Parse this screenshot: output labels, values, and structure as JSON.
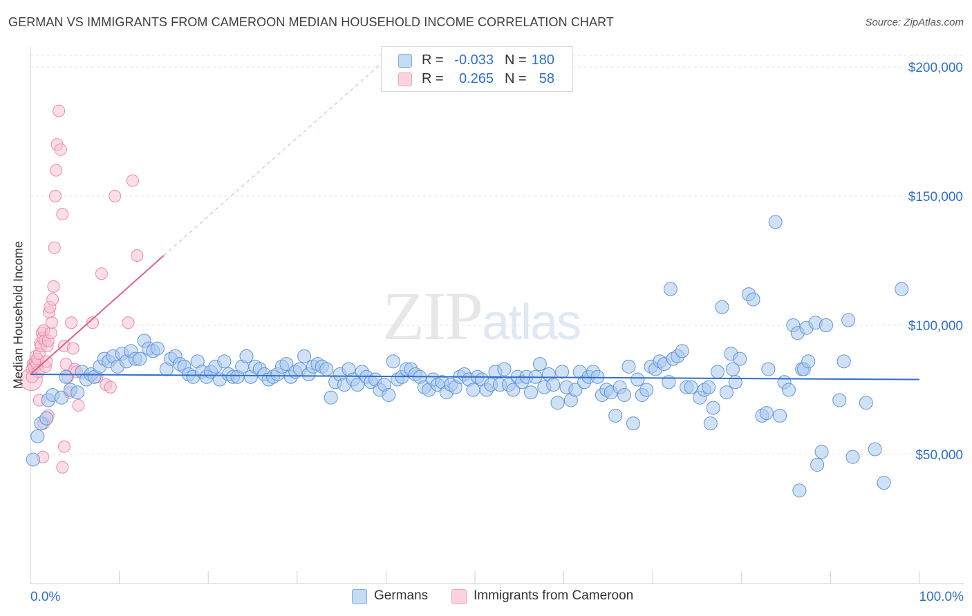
{
  "title": "GERMAN VS IMMIGRANTS FROM CAMEROON MEDIAN HOUSEHOLD INCOME CORRELATION CHART",
  "source": "Source: ZipAtlas.com",
  "watermark": {
    "zip": "ZIP",
    "atlas": "atlas"
  },
  "legend": {
    "rows": [
      {
        "r_label": "R =",
        "r_value": "-0.033",
        "n_label": "N =",
        "n_value": "180",
        "color": "#7aaee6"
      },
      {
        "r_label": "R =",
        "r_value": "0.265",
        "n_label": "N =",
        "n_value": "58",
        "color": "#f2a3bd"
      }
    ]
  },
  "bottom_legend": {
    "items": [
      {
        "label": "Germans",
        "color": "#7aaee6"
      },
      {
        "label": "Immigrants from Cameroon",
        "color": "#f2a3bd"
      }
    ]
  },
  "colors": {
    "blue_fill": "#a9c9ef",
    "blue_stroke": "#5f95d8",
    "blue_line": "#2f6fc9",
    "pink_fill": "#f7c2d3",
    "pink_stroke": "#e88aaa",
    "pink_line": "#e0608a",
    "tick_label": "#2f6fc9",
    "grid": "#e6e6e6"
  },
  "chart_data": {
    "type": "scatter",
    "title": "GERMAN VS IMMIGRANTS FROM CAMEROON MEDIAN HOUSEHOLD INCOME CORRELATION CHART",
    "xlabel": "",
    "ylabel": "Median Household Income",
    "xlim": [
      0,
      100
    ],
    "ylim": [
      0,
      210000
    ],
    "x_tick_labels": [
      "0.0%",
      "100.0%"
    ],
    "y_ticks": [
      50000,
      100000,
      150000,
      200000
    ],
    "y_tick_labels": [
      "$50,000",
      "$100,000",
      "$150,000",
      "$200,000"
    ],
    "grid": "horizontal dashed",
    "legend_position": "top-center",
    "series": [
      {
        "name": "Germans",
        "trend": {
          "x": [
            0,
            100
          ],
          "y": [
            81000,
            79000
          ]
        },
        "points": [
          [
            0.3,
            48000
          ],
          [
            0.8,
            57000
          ],
          [
            1.2,
            62000
          ],
          [
            1.8,
            64000
          ],
          [
            2.0,
            71000
          ],
          [
            2.5,
            73000
          ],
          [
            3.5,
            72000
          ],
          [
            4.0,
            80000
          ],
          [
            4.5,
            75000
          ],
          [
            5.3,
            74000
          ],
          [
            5.8,
            82000
          ],
          [
            6.3,
            79000
          ],
          [
            6.8,
            81000
          ],
          [
            7.2,
            80000
          ],
          [
            7.8,
            84000
          ],
          [
            8.3,
            87000
          ],
          [
            8.8,
            86000
          ],
          [
            9.3,
            88000
          ],
          [
            9.8,
            84000
          ],
          [
            10.3,
            89000
          ],
          [
            10.8,
            86000
          ],
          [
            11.3,
            90000
          ],
          [
            11.8,
            87000
          ],
          [
            12.3,
            87000
          ],
          [
            12.8,
            94000
          ],
          [
            13.3,
            91000
          ],
          [
            13.8,
            90000
          ],
          [
            14.3,
            91000
          ],
          [
            15.3,
            83000
          ],
          [
            15.8,
            87000
          ],
          [
            16.3,
            88000
          ],
          [
            16.8,
            85000
          ],
          [
            17.3,
            84000
          ],
          [
            17.8,
            81000
          ],
          [
            18.3,
            80000
          ],
          [
            18.8,
            86000
          ],
          [
            19.3,
            82000
          ],
          [
            19.8,
            80000
          ],
          [
            20.3,
            82000
          ],
          [
            20.8,
            84000
          ],
          [
            21.3,
            79000
          ],
          [
            21.8,
            86000
          ],
          [
            22.3,
            81000
          ],
          [
            22.8,
            80000
          ],
          [
            23.3,
            80000
          ],
          [
            23.8,
            84000
          ],
          [
            24.3,
            88000
          ],
          [
            24.8,
            80000
          ],
          [
            25.3,
            84000
          ],
          [
            25.8,
            83000
          ],
          [
            26.3,
            81000
          ],
          [
            26.8,
            79000
          ],
          [
            27.3,
            80000
          ],
          [
            27.8,
            81000
          ],
          [
            28.3,
            84000
          ],
          [
            28.8,
            85000
          ],
          [
            29.3,
            80000
          ],
          [
            29.8,
            82000
          ],
          [
            30.3,
            83000
          ],
          [
            30.8,
            88000
          ],
          [
            31.3,
            81000
          ],
          [
            31.8,
            84000
          ],
          [
            32.3,
            85000
          ],
          [
            32.8,
            84000
          ],
          [
            33.3,
            83000
          ],
          [
            33.8,
            72000
          ],
          [
            34.3,
            78000
          ],
          [
            34.8,
            81000
          ],
          [
            35.3,
            77000
          ],
          [
            35.8,
            83000
          ],
          [
            36.3,
            79000
          ],
          [
            36.8,
            77000
          ],
          [
            37.3,
            82000
          ],
          [
            37.8,
            80000
          ],
          [
            38.3,
            78000
          ],
          [
            38.8,
            79000
          ],
          [
            39.3,
            75000
          ],
          [
            39.8,
            77000
          ],
          [
            40.3,
            73000
          ],
          [
            40.8,
            86000
          ],
          [
            41.3,
            79000
          ],
          [
            41.8,
            80000
          ],
          [
            42.3,
            83000
          ],
          [
            42.8,
            83000
          ],
          [
            43.3,
            81000
          ],
          [
            43.8,
            80000
          ],
          [
            44.3,
            76000
          ],
          [
            44.8,
            75000
          ],
          [
            45.3,
            79000
          ],
          [
            45.8,
            77000
          ],
          [
            46.3,
            78000
          ],
          [
            46.8,
            74000
          ],
          [
            47.3,
            77000
          ],
          [
            47.8,
            76000
          ],
          [
            48.3,
            80000
          ],
          [
            48.8,
            81000
          ],
          [
            49.3,
            79000
          ],
          [
            49.8,
            75000
          ],
          [
            50.3,
            80000
          ],
          [
            50.8,
            79000
          ],
          [
            51.3,
            75000
          ],
          [
            51.8,
            77000
          ],
          [
            52.3,
            82000
          ],
          [
            52.8,
            77000
          ],
          [
            53.3,
            83000
          ],
          [
            53.8,
            77000
          ],
          [
            54.3,
            75000
          ],
          [
            54.8,
            80000
          ],
          [
            55.3,
            78000
          ],
          [
            55.8,
            80000
          ],
          [
            56.3,
            74000
          ],
          [
            56.8,
            80000
          ],
          [
            57.3,
            85000
          ],
          [
            57.8,
            76000
          ],
          [
            58.3,
            81000
          ],
          [
            58.8,
            77000
          ],
          [
            59.3,
            70000
          ],
          [
            59.8,
            82000
          ],
          [
            60.3,
            76000
          ],
          [
            60.8,
            71000
          ],
          [
            61.3,
            75000
          ],
          [
            61.8,
            82000
          ],
          [
            62.3,
            78000
          ],
          [
            62.8,
            80000
          ],
          [
            63.3,
            82000
          ],
          [
            63.8,
            80000
          ],
          [
            64.3,
            73000
          ],
          [
            64.8,
            75000
          ],
          [
            65.3,
            74000
          ],
          [
            65.8,
            65000
          ],
          [
            66.3,
            76000
          ],
          [
            66.8,
            73000
          ],
          [
            67.3,
            84000
          ],
          [
            67.8,
            62000
          ],
          [
            68.3,
            79000
          ],
          [
            68.8,
            73000
          ],
          [
            69.3,
            75000
          ],
          [
            69.8,
            84000
          ],
          [
            70.3,
            83000
          ],
          [
            70.8,
            86000
          ],
          [
            71.3,
            85000
          ],
          [
            71.8,
            78000
          ],
          [
            72.3,
            87000
          ],
          [
            72.8,
            88000
          ],
          [
            73.3,
            90000
          ],
          [
            73.8,
            76000
          ],
          [
            74.3,
            76000
          ],
          [
            75.3,
            72000
          ],
          [
            75.8,
            75000
          ],
          [
            76.3,
            76000
          ],
          [
            76.8,
            68000
          ],
          [
            77.3,
            82000
          ],
          [
            77.8,
            107000
          ],
          [
            78.3,
            74000
          ],
          [
            78.8,
            89000
          ],
          [
            79.3,
            78000
          ],
          [
            79.8,
            87000
          ],
          [
            80.8,
            112000
          ],
          [
            81.3,
            110000
          ],
          [
            82.3,
            65000
          ],
          [
            82.8,
            66000
          ],
          [
            83.8,
            140000
          ],
          [
            84.3,
            65000
          ],
          [
            84.8,
            78000
          ],
          [
            85.3,
            75000
          ],
          [
            85.8,
            100000
          ],
          [
            86.3,
            97000
          ],
          [
            86.8,
            83000
          ],
          [
            87.3,
            99000
          ],
          [
            88.3,
            101000
          ],
          [
            89.0,
            51000
          ],
          [
            72.0,
            114000
          ],
          [
            76.5,
            62000
          ],
          [
            79.0,
            83000
          ],
          [
            83.0,
            83000
          ],
          [
            87.0,
            83000
          ],
          [
            87.5,
            86000
          ],
          [
            88.5,
            46000
          ],
          [
            89.5,
            100000
          ],
          [
            91.0,
            71000
          ],
          [
            92.5,
            49000
          ],
          [
            94.0,
            70000
          ],
          [
            95.0,
            52000
          ],
          [
            96.0,
            39000
          ],
          [
            98.0,
            114000
          ],
          [
            92.0,
            102000
          ],
          [
            86.5,
            36000
          ],
          [
            91.5,
            86000
          ]
        ]
      },
      {
        "name": "Immigrants from Cameroon",
        "trend": {
          "x": [
            0,
            15
          ],
          "y": [
            81000,
            127000
          ]
        },
        "trend_extension": {
          "x": [
            15,
            40
          ],
          "y": [
            127000,
            203000
          ]
        },
        "points": [
          [
            0.1,
            79000
          ],
          [
            0.2,
            83000
          ],
          [
            0.3,
            85000
          ],
          [
            0.4,
            84000
          ],
          [
            0.5,
            86000
          ],
          [
            0.6,
            88000
          ],
          [
            0.7,
            85000
          ],
          [
            0.8,
            87000
          ],
          [
            0.9,
            82000
          ],
          [
            1.0,
            89000
          ],
          [
            1.1,
            93000
          ],
          [
            1.2,
            92000
          ],
          [
            1.3,
            97000
          ],
          [
            1.4,
            95000
          ],
          [
            1.5,
            98000
          ],
          [
            1.6,
            94000
          ],
          [
            1.7,
            84000
          ],
          [
            1.8,
            86000
          ],
          [
            1.9,
            92000
          ],
          [
            2.0,
            94000
          ],
          [
            2.1,
            105000
          ],
          [
            2.2,
            107000
          ],
          [
            2.3,
            97000
          ],
          [
            2.4,
            101000
          ],
          [
            2.5,
            110000
          ],
          [
            2.6,
            115000
          ],
          [
            2.7,
            130000
          ],
          [
            2.8,
            150000
          ],
          [
            2.9,
            160000
          ],
          [
            3.0,
            170000
          ],
          [
            3.2,
            183000
          ],
          [
            3.4,
            168000
          ],
          [
            3.6,
            143000
          ],
          [
            3.8,
            92000
          ],
          [
            4.0,
            85000
          ],
          [
            4.2,
            80000
          ],
          [
            4.4,
            74000
          ],
          [
            4.6,
            101000
          ],
          [
            4.8,
            91000
          ],
          [
            5.0,
            83000
          ],
          [
            5.2,
            82000
          ],
          [
            5.4,
            69000
          ],
          [
            1.0,
            71000
          ],
          [
            1.5,
            62000
          ],
          [
            2.0,
            65000
          ],
          [
            3.8,
            53000
          ],
          [
            3.6,
            45000
          ],
          [
            1.4,
            49000
          ],
          [
            7.0,
            101000
          ],
          [
            7.5,
            80000
          ],
          [
            8.0,
            120000
          ],
          [
            8.5,
            77000
          ],
          [
            9.0,
            76000
          ],
          [
            9.5,
            150000
          ],
          [
            11.0,
            101000
          ],
          [
            11.5,
            156000
          ],
          [
            12.0,
            127000
          ],
          [
            0.2,
            80000
          ]
        ]
      }
    ]
  }
}
